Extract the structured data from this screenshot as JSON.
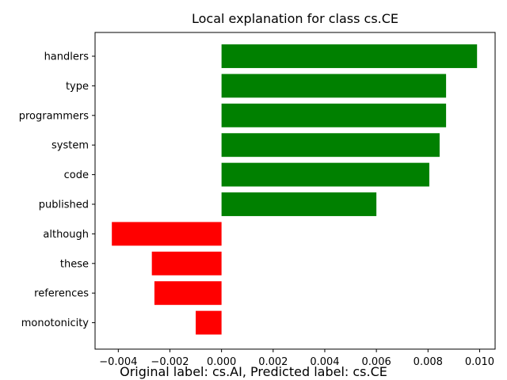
{
  "chart_data": {
    "type": "bar",
    "orientation": "horizontal",
    "title": "Local explanation for class cs.CE",
    "caption": "Original label: cs.AI, Predicted label: cs.CE",
    "categories": [
      "handlers",
      "type",
      "programmers",
      "system",
      "code",
      "published",
      "although",
      "these",
      "references",
      "monotonicity"
    ],
    "values": [
      0.0099,
      0.0087,
      0.0087,
      0.00845,
      0.00805,
      0.006,
      -0.00425,
      -0.0027,
      -0.0026,
      -0.001
    ],
    "positive_color": "#008000",
    "negative_color": "#ff0000",
    "xlim": [
      -0.0049,
      0.0106
    ],
    "xticks": [
      -0.004,
      -0.002,
      0.0,
      0.002,
      0.004,
      0.006,
      0.008,
      0.01
    ],
    "xtick_labels": [
      "−0.004",
      "−0.002",
      "0.000",
      "0.002",
      "0.004",
      "0.006",
      "0.008",
      "0.010"
    ],
    "grid": false,
    "xlabel": "",
    "ylabel": ""
  }
}
